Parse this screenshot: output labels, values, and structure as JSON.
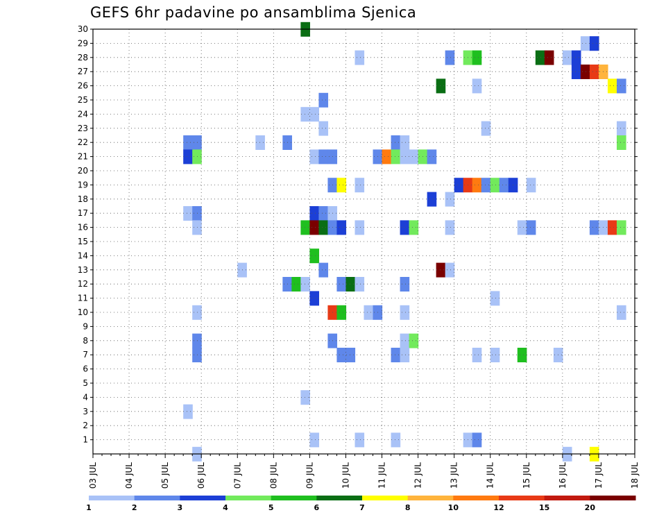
{
  "chart_data": {
    "type": "heatmap",
    "title": "GEFS 6hr padavine po ansamblima Sjenica",
    "x_tick_labels": [
      "03 JUL",
      "04 JUL",
      "05 JUL",
      "06 JUL",
      "07 JUL",
      "08 JUL",
      "09 JUL",
      "10 JUL",
      "11 JUL",
      "12 JUL",
      "13 JUL",
      "14 JUL",
      "15 JUL",
      "16 JUL",
      "17 JUL",
      "18 JUL"
    ],
    "x_range_days": [
      0,
      15
    ],
    "y_tick_labels": [
      "1",
      "2",
      "3",
      "4",
      "5",
      "6",
      "7",
      "8",
      "9",
      "10",
      "11",
      "12",
      "13",
      "14",
      "15",
      "16",
      "17",
      "18",
      "19",
      "20",
      "21",
      "22",
      "23",
      "24",
      "25",
      "26",
      "27",
      "28",
      "29",
      "30"
    ],
    "y_range": [
      0,
      30
    ],
    "grid": true,
    "legend_placement": "bottom",
    "legend": {
      "thresholds": [
        "1",
        "2",
        "3",
        "4",
        "5",
        "6",
        "7",
        "8",
        "10",
        "12",
        "15",
        "20"
      ],
      "colors": [
        "#a9c2f7",
        "#5f87ea",
        "#1c3fd6",
        "#72ea5c",
        "#1fbf1f",
        "#0a6e14",
        "#ffff00",
        "#ffb43c",
        "#ff7a10",
        "#e83a16",
        "#c21a0f",
        "#7a0000"
      ]
    },
    "time_step_days": 0.25,
    "cells": [
      {
        "member": 30,
        "t": 5.75,
        "class": 6
      },
      {
        "member": 29,
        "t": 13.5,
        "class": 1
      },
      {
        "member": 29,
        "t": 13.75,
        "class": 3
      },
      {
        "member": 28,
        "t": 7.25,
        "class": 1
      },
      {
        "member": 28,
        "t": 9.75,
        "class": 2
      },
      {
        "member": 28,
        "t": 10.25,
        "class": 4
      },
      {
        "member": 28,
        "t": 10.5,
        "class": 5
      },
      {
        "member": 28,
        "t": 12.25,
        "class": 6
      },
      {
        "member": 28,
        "t": 12.5,
        "class": 12
      },
      {
        "member": 28,
        "t": 13.0,
        "class": 1
      },
      {
        "member": 28,
        "t": 13.25,
        "class": 3
      },
      {
        "member": 27,
        "t": 13.25,
        "class": 3
      },
      {
        "member": 27,
        "t": 13.5,
        "class": 12
      },
      {
        "member": 27,
        "t": 13.75,
        "class": 10
      },
      {
        "member": 27,
        "t": 14.0,
        "class": 8
      },
      {
        "member": 26,
        "t": 9.5,
        "class": 6
      },
      {
        "member": 26,
        "t": 10.5,
        "class": 1
      },
      {
        "member": 26,
        "t": 14.25,
        "class": 7
      },
      {
        "member": 26,
        "t": 14.5,
        "class": 2
      },
      {
        "member": 25,
        "t": 6.25,
        "class": 2
      },
      {
        "member": 24,
        "t": 5.75,
        "class": 1
      },
      {
        "member": 24,
        "t": 6.0,
        "class": 1
      },
      {
        "member": 23,
        "t": 6.25,
        "class": 1
      },
      {
        "member": 23,
        "t": 10.75,
        "class": 1
      },
      {
        "member": 23,
        "t": 14.5,
        "class": 1
      },
      {
        "member": 22,
        "t": 2.5,
        "class": 2
      },
      {
        "member": 22,
        "t": 2.75,
        "class": 2
      },
      {
        "member": 22,
        "t": 4.5,
        "class": 1
      },
      {
        "member": 22,
        "t": 5.25,
        "class": 2
      },
      {
        "member": 22,
        "t": 8.25,
        "class": 2
      },
      {
        "member": 22,
        "t": 8.5,
        "class": 1
      },
      {
        "member": 22,
        "t": 14.5,
        "class": 4
      },
      {
        "member": 21,
        "t": 2.5,
        "class": 3
      },
      {
        "member": 21,
        "t": 2.75,
        "class": 4
      },
      {
        "member": 21,
        "t": 6.0,
        "class": 1
      },
      {
        "member": 21,
        "t": 6.25,
        "class": 2
      },
      {
        "member": 21,
        "t": 6.5,
        "class": 2
      },
      {
        "member": 21,
        "t": 7.75,
        "class": 2
      },
      {
        "member": 21,
        "t": 8.0,
        "class": 9
      },
      {
        "member": 21,
        "t": 8.25,
        "class": 4
      },
      {
        "member": 21,
        "t": 8.5,
        "class": 1
      },
      {
        "member": 21,
        "t": 8.75,
        "class": 1
      },
      {
        "member": 21,
        "t": 9.0,
        "class": 4
      },
      {
        "member": 21,
        "t": 9.25,
        "class": 2
      },
      {
        "member": 19,
        "t": 6.5,
        "class": 2
      },
      {
        "member": 19,
        "t": 6.75,
        "class": 7
      },
      {
        "member": 19,
        "t": 7.25,
        "class": 1
      },
      {
        "member": 19,
        "t": 10.0,
        "class": 3
      },
      {
        "member": 19,
        "t": 10.25,
        "class": 10
      },
      {
        "member": 19,
        "t": 10.5,
        "class": 9
      },
      {
        "member": 19,
        "t": 10.75,
        "class": 2
      },
      {
        "member": 19,
        "t": 11.0,
        "class": 4
      },
      {
        "member": 19,
        "t": 11.25,
        "class": 2
      },
      {
        "member": 19,
        "t": 11.5,
        "class": 3
      },
      {
        "member": 19,
        "t": 12.0,
        "class": 1
      },
      {
        "member": 18,
        "t": 9.25,
        "class": 3
      },
      {
        "member": 18,
        "t": 9.75,
        "class": 1
      },
      {
        "member": 17,
        "t": 2.5,
        "class": 1
      },
      {
        "member": 17,
        "t": 2.75,
        "class": 2
      },
      {
        "member": 17,
        "t": 6.0,
        "class": 3
      },
      {
        "member": 17,
        "t": 6.25,
        "class": 2
      },
      {
        "member": 17,
        "t": 6.5,
        "class": 1
      },
      {
        "member": 16,
        "t": 2.75,
        "class": 1
      },
      {
        "member": 16,
        "t": 5.75,
        "class": 5
      },
      {
        "member": 16,
        "t": 6.0,
        "class": 12
      },
      {
        "member": 16,
        "t": 6.25,
        "class": 6
      },
      {
        "member": 16,
        "t": 6.5,
        "class": 2
      },
      {
        "member": 16,
        "t": 6.75,
        "class": 3
      },
      {
        "member": 16,
        "t": 7.25,
        "class": 1
      },
      {
        "member": 16,
        "t": 8.5,
        "class": 3
      },
      {
        "member": 16,
        "t": 8.75,
        "class": 4
      },
      {
        "member": 16,
        "t": 9.75,
        "class": 1
      },
      {
        "member": 16,
        "t": 11.75,
        "class": 1
      },
      {
        "member": 16,
        "t": 12.0,
        "class": 2
      },
      {
        "member": 16,
        "t": 13.75,
        "class": 2
      },
      {
        "member": 16,
        "t": 14.0,
        "class": 1
      },
      {
        "member": 16,
        "t": 14.25,
        "class": 10
      },
      {
        "member": 16,
        "t": 14.5,
        "class": 4
      },
      {
        "member": 14,
        "t": 6.0,
        "class": 5
      },
      {
        "member": 13,
        "t": 4.0,
        "class": 1
      },
      {
        "member": 13,
        "t": 6.25,
        "class": 2
      },
      {
        "member": 13,
        "t": 9.5,
        "class": 12
      },
      {
        "member": 13,
        "t": 9.75,
        "class": 1
      },
      {
        "member": 12,
        "t": 5.25,
        "class": 2
      },
      {
        "member": 12,
        "t": 5.5,
        "class": 5
      },
      {
        "member": 12,
        "t": 5.75,
        "class": 1
      },
      {
        "member": 12,
        "t": 6.75,
        "class": 2
      },
      {
        "member": 12,
        "t": 7.0,
        "class": 6
      },
      {
        "member": 12,
        "t": 7.25,
        "class": 1
      },
      {
        "member": 12,
        "t": 8.5,
        "class": 2
      },
      {
        "member": 11,
        "t": 6.0,
        "class": 3
      },
      {
        "member": 11,
        "t": 11.0,
        "class": 1
      },
      {
        "member": 10,
        "t": 2.75,
        "class": 1
      },
      {
        "member": 10,
        "t": 6.5,
        "class": 10
      },
      {
        "member": 10,
        "t": 6.75,
        "class": 5
      },
      {
        "member": 10,
        "t": 7.5,
        "class": 1
      },
      {
        "member": 10,
        "t": 7.75,
        "class": 2
      },
      {
        "member": 10,
        "t": 8.5,
        "class": 1
      },
      {
        "member": 10,
        "t": 14.5,
        "class": 1
      },
      {
        "member": 8,
        "t": 2.75,
        "class": 2
      },
      {
        "member": 8,
        "t": 6.5,
        "class": 2
      },
      {
        "member": 8,
        "t": 8.5,
        "class": 1
      },
      {
        "member": 8,
        "t": 8.75,
        "class": 4
      },
      {
        "member": 7,
        "t": 2.75,
        "class": 2
      },
      {
        "member": 7,
        "t": 6.75,
        "class": 2
      },
      {
        "member": 7,
        "t": 7.0,
        "class": 2
      },
      {
        "member": 7,
        "t": 8.25,
        "class": 2
      },
      {
        "member": 7,
        "t": 8.5,
        "class": 1
      },
      {
        "member": 7,
        "t": 10.5,
        "class": 1
      },
      {
        "member": 7,
        "t": 11.0,
        "class": 1
      },
      {
        "member": 7,
        "t": 11.75,
        "class": 5
      },
      {
        "member": 7,
        "t": 12.75,
        "class": 1
      },
      {
        "member": 4,
        "t": 5.75,
        "class": 1
      },
      {
        "member": 3,
        "t": 2.5,
        "class": 1
      },
      {
        "member": 1,
        "t": 6.0,
        "class": 1
      },
      {
        "member": 1,
        "t": 7.25,
        "class": 1
      },
      {
        "member": 1,
        "t": 8.25,
        "class": 1
      },
      {
        "member": 1,
        "t": 10.25,
        "class": 1
      },
      {
        "member": 1,
        "t": 10.5,
        "class": 2
      },
      {
        "member": 0,
        "t": 2.75,
        "class": 1
      },
      {
        "member": 0,
        "t": 13.0,
        "class": 1
      },
      {
        "member": 0,
        "t": 13.75,
        "class": 7
      }
    ]
  }
}
